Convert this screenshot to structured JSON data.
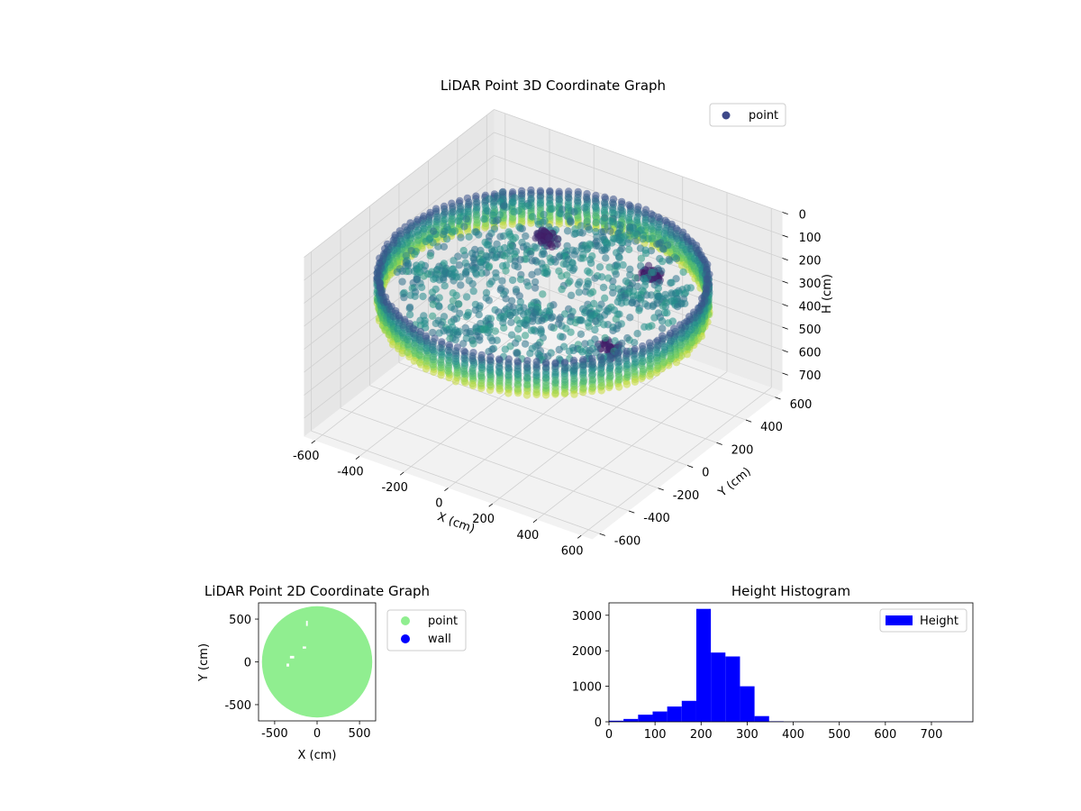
{
  "chart_data": [
    {
      "type": "scatter",
      "projection": "3d",
      "title": "LiDAR Point 3D Coordinate Graph",
      "xlabel": "X (cm)",
      "ylabel": "Y (cm)",
      "zlabel": "H (cm)",
      "xlim": [
        -650,
        650
      ],
      "ylim": [
        -650,
        650
      ],
      "zlim": [
        780,
        0
      ],
      "zaxis_inverted": true,
      "xticks": [
        -600,
        -400,
        -200,
        0,
        200,
        400,
        600
      ],
      "yticks": [
        -600,
        -400,
        -200,
        0,
        200,
        400,
        600
      ],
      "zticks": [
        0,
        100,
        200,
        300,
        400,
        500,
        600,
        700
      ],
      "grid": true,
      "legend": {
        "position": "top-right",
        "entries": [
          "point"
        ]
      },
      "colormap": "viridis",
      "series": [
        {
          "name": "point",
          "color": "#3e4989",
          "shape": "ring wall with interior floor and objects",
          "wall_radius_cm": 620,
          "wall_height_range_cm": [
            180,
            330
          ],
          "objects": [
            {
              "x": -150,
              "y": 250,
              "h": 190
            },
            {
              "x": 250,
              "y": 350,
              "h": 260
            },
            {
              "x": 400,
              "y": -150,
              "h": 280
            }
          ]
        }
      ]
    },
    {
      "type": "scatter",
      "title": "LiDAR Point 2D Coordinate Graph",
      "xlabel": "X (cm)",
      "ylabel": "Y (cm)",
      "xlim": [
        -690,
        690
      ],
      "ylim": [
        -690,
        690
      ],
      "xticks": [
        -500,
        0,
        500
      ],
      "yticks": [
        -500,
        0,
        500
      ],
      "legend": {
        "position": "outside right",
        "entries": [
          "point",
          "wall"
        ]
      },
      "series": [
        {
          "name": "point",
          "color": "#90ee90",
          "shape": "filled disk",
          "center": [
            0,
            0
          ],
          "radius_cm": 650
        },
        {
          "name": "wall",
          "color": "#0000ff",
          "count": 0
        }
      ],
      "gaps": [
        {
          "x": -320,
          "y": 70,
          "w": 50,
          "h": 30
        },
        {
          "x": -170,
          "y": 180,
          "w": 40,
          "h": 25
        },
        {
          "x": -360,
          "y": -20,
          "w": 30,
          "h": 35
        },
        {
          "x": -130,
          "y": 480,
          "w": 20,
          "h": 60
        }
      ]
    },
    {
      "type": "bar",
      "subtype": "histogram",
      "title": "Height Histogram",
      "xlim": [
        0,
        790
      ],
      "ylim": [
        0,
        3350
      ],
      "xticks": [
        0,
        100,
        200,
        300,
        400,
        500,
        600,
        700
      ],
      "yticks": [
        0,
        1000,
        2000,
        3000
      ],
      "legend": {
        "position": "top-right",
        "entries": [
          "Height"
        ]
      },
      "series": [
        {
          "name": "Height",
          "color": "#0000ff",
          "bin_width": 31.6,
          "bins_start": 0,
          "values": [
            30,
            80,
            200,
            290,
            430,
            590,
            3180,
            1950,
            1840,
            1000,
            160,
            15,
            5,
            5,
            5,
            5,
            5,
            5,
            5,
            5,
            5,
            5,
            5,
            5,
            5
          ]
        }
      ]
    }
  ]
}
